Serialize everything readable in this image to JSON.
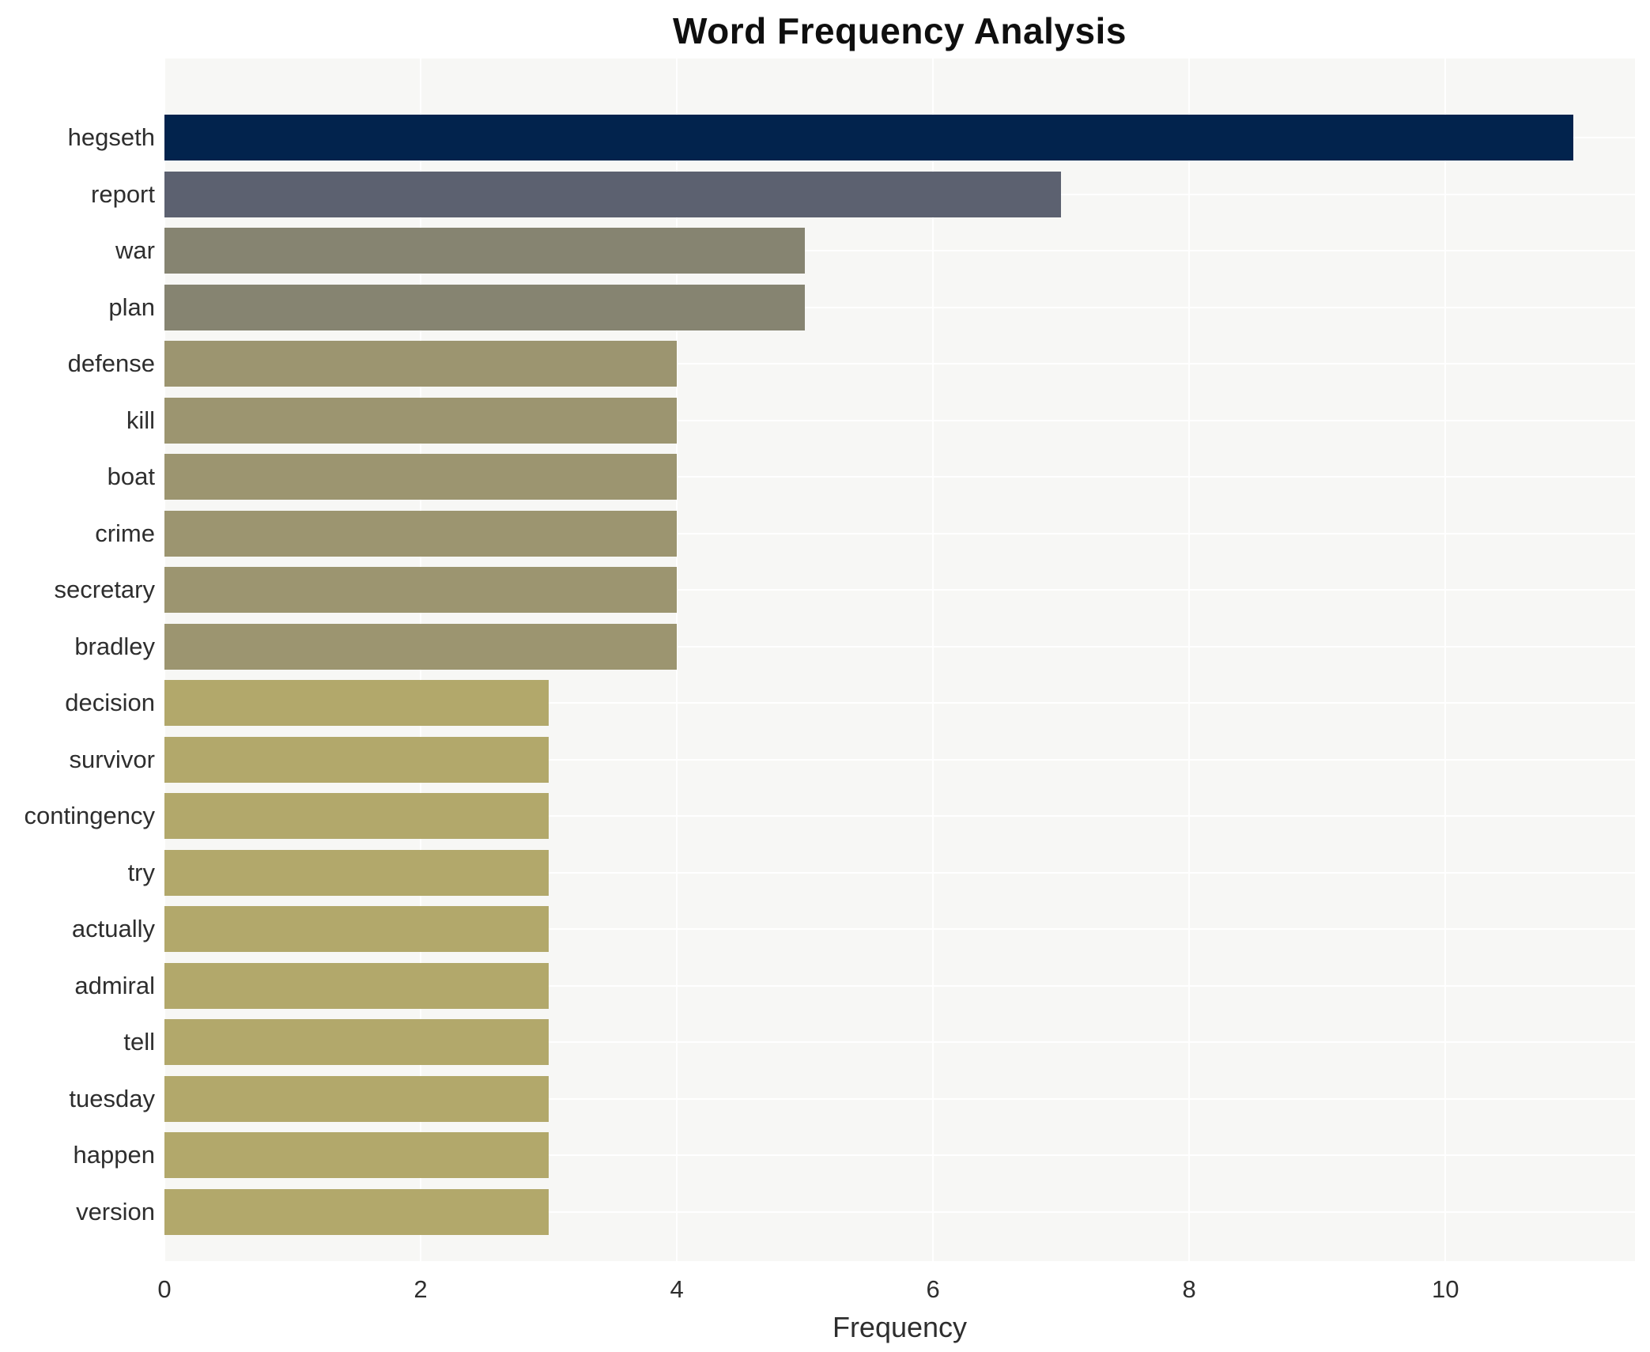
{
  "chart_data": {
    "type": "bar",
    "orientation": "horizontal",
    "title": "Word Frequency Analysis",
    "xlabel": "Frequency",
    "ylabel": "",
    "categories": [
      "hegseth",
      "report",
      "war",
      "plan",
      "defense",
      "kill",
      "boat",
      "crime",
      "secretary",
      "bradley",
      "decision",
      "survivor",
      "contingency",
      "try",
      "actually",
      "admiral",
      "tell",
      "tuesday",
      "happen",
      "version"
    ],
    "values": [
      11,
      7,
      5,
      5,
      4,
      4,
      4,
      4,
      4,
      4,
      3,
      3,
      3,
      3,
      3,
      3,
      3,
      3,
      3,
      3
    ],
    "bar_colors": [
      "#02234d",
      "#5c6170",
      "#868471",
      "#868471",
      "#9c9570",
      "#9c9570",
      "#9c9570",
      "#9c9570",
      "#9c9570",
      "#9c9570",
      "#b2a86b",
      "#b2a86b",
      "#b2a86b",
      "#b2a86b",
      "#b2a86b",
      "#b2a86b",
      "#b2a86b",
      "#b2a86b",
      "#b2a86b",
      "#b2a86b"
    ],
    "xlim": [
      0,
      11.48
    ],
    "xticks": [
      0,
      2,
      4,
      6,
      8,
      10
    ],
    "grid": true,
    "legend": false,
    "colors": {
      "plot_background": "#f7f7f5",
      "gridline": "#ffffff",
      "text": "#2e2e2e",
      "title_text": "#0f0f0f",
      "page_background": "#ffffff"
    }
  }
}
